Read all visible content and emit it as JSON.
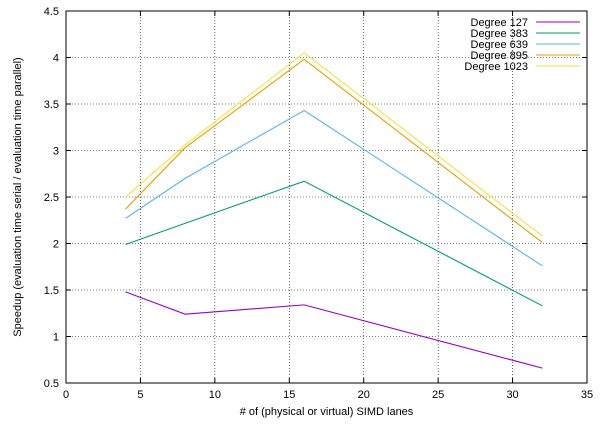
{
  "chart_data": {
    "type": "line",
    "title": "",
    "xlabel": "# of (physical or virtual) SIMD lanes",
    "ylabel": "Speedup (evaluation time serial / evaluation time parallel)",
    "xlim": [
      0,
      35
    ],
    "ylim": [
      0.5,
      4.5
    ],
    "xticks": [
      0,
      5,
      10,
      15,
      20,
      25,
      30,
      35
    ],
    "yticks": [
      0.5,
      1,
      1.5,
      2,
      2.5,
      3,
      3.5,
      4,
      4.5
    ],
    "xtick_labels": [
      "0",
      "5",
      "10",
      "15",
      "20",
      "25",
      "30",
      "35"
    ],
    "ytick_labels": [
      "0.5",
      "1",
      "1.5",
      "2",
      "2.5",
      "3",
      "3.5",
      "4",
      "4.5"
    ],
    "grid": true,
    "legend_position": "top-right",
    "series": [
      {
        "name": "Degree 127",
        "color": "#9400d3",
        "x": [
          4,
          8,
          16,
          32
        ],
        "y": [
          1.48,
          1.24,
          1.34,
          0.66
        ]
      },
      {
        "name": "Degree 383",
        "color": "#009e73",
        "x": [
          4,
          16,
          32
        ],
        "y": [
          1.99,
          2.67,
          1.33
        ]
      },
      {
        "name": "Degree 639",
        "color": "#56b4e9",
        "x": [
          4,
          8,
          16,
          32
        ],
        "y": [
          2.27,
          2.7,
          3.43,
          1.76
        ]
      },
      {
        "name": "Degree 895",
        "color": "#e69f00",
        "x": [
          4,
          8,
          16,
          32
        ],
        "y": [
          2.37,
          3.03,
          3.98,
          2.01
        ]
      },
      {
        "name": "Degree 1023",
        "color": "#f0e442",
        "x": [
          4,
          8,
          16,
          32
        ],
        "y": [
          2.5,
          3.06,
          4.05,
          2.08
        ]
      }
    ]
  }
}
